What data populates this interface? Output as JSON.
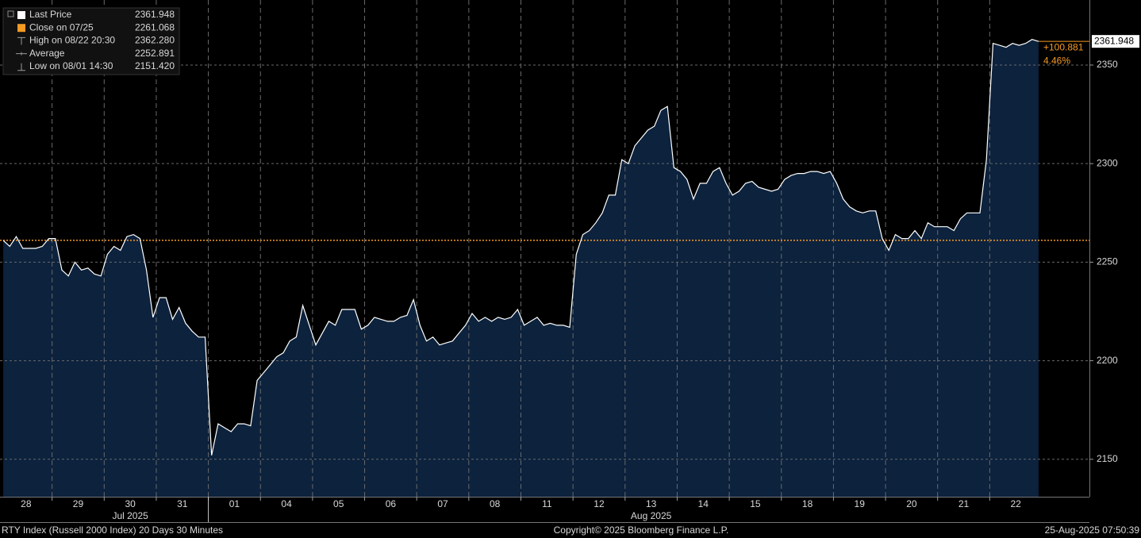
{
  "chart_data": {
    "type": "area",
    "legend": [
      {
        "label": "Last Price",
        "value": "2361.948"
      },
      {
        "label": "Close on 07/25",
        "value": "2261.068"
      },
      {
        "label": "High on 08/22 20:30",
        "value": "2362.280"
      },
      {
        "label": "Average",
        "value": "2252.891"
      },
      {
        "label": "Low on 08/01 14:30",
        "value": "2151.420"
      }
    ],
    "reference_line": 2261.068,
    "change_label": "+100.881",
    "change_pct_label": "4.46%",
    "categories": [
      null,
      null,
      null,
      null,
      "28",
      null,
      null,
      null,
      null,
      null,
      null,
      null,
      "29",
      null,
      null,
      null,
      null,
      null,
      null,
      null,
      "30",
      null,
      null,
      null,
      null,
      null,
      null,
      null,
      "31",
      null,
      null,
      null,
      null,
      null,
      null,
      null,
      "01",
      null,
      null,
      null,
      null,
      null,
      null,
      null,
      "04",
      null,
      null,
      null,
      null,
      null,
      null,
      null,
      "05",
      null,
      null,
      null,
      null,
      null,
      null,
      null,
      "06",
      null,
      null,
      null,
      null,
      null,
      null,
      null,
      "07",
      null,
      null,
      null,
      null,
      null,
      null,
      null,
      "08",
      null,
      null,
      null,
      null,
      null,
      null,
      null,
      "11",
      null,
      null,
      null,
      null,
      null,
      null,
      null,
      "12",
      null,
      null,
      null,
      null,
      null,
      null,
      null,
      "13",
      null,
      null,
      null,
      null,
      null,
      null,
      null,
      "14",
      null,
      null,
      null,
      null,
      null,
      null,
      null,
      "15",
      null,
      null,
      null,
      null,
      null,
      null,
      null,
      "18",
      null,
      null,
      null,
      null,
      null,
      null,
      null,
      "19",
      null,
      null,
      null,
      null,
      null,
      null,
      null,
      "20",
      null,
      null,
      null,
      null,
      null,
      null,
      null,
      "21",
      null,
      null,
      null,
      null,
      null,
      null,
      null,
      "22",
      null,
      null,
      null
    ],
    "month_labels": [
      "Jul 2025",
      "Aug 2025"
    ],
    "series": [
      {
        "name": "Last Price",
        "color": "#ffffff",
        "fill": "#0c223d",
        "values": [
          2261,
          2258,
          2263,
          2257,
          2257,
          2257,
          2258,
          2262,
          2262,
          2246,
          2243,
          2250,
          2246,
          2247,
          2244,
          2243,
          2254,
          2258,
          2256,
          2263,
          2264,
          2262,
          2246,
          2222,
          2232,
          2232,
          2221,
          2227,
          2219,
          2215,
          2212,
          2212,
          2152,
          2168,
          2166,
          2164,
          2168,
          2168,
          2167,
          2190,
          2194,
          2198,
          2202,
          2204,
          2210,
          2212,
          2228,
          2218,
          2208,
          2214,
          2220,
          2218,
          2226,
          2226,
          2226,
          2216,
          2218,
          2222,
          2221,
          2220,
          2220,
          2222,
          2223,
          2231,
          2218,
          2210,
          2212,
          2208,
          2209,
          2210,
          2214,
          2218,
          2224,
          2220,
          2222,
          2220,
          2222,
          2221,
          2222,
          2226,
          2218,
          2220,
          2222,
          2218,
          2219,
          2218,
          2218,
          2217,
          2254,
          2264,
          2266,
          2270,
          2275,
          2284,
          2284,
          2302,
          2300,
          2309,
          2313,
          2317,
          2319,
          2327,
          2329,
          2298,
          2296,
          2292,
          2282,
          2290,
          2290,
          2296,
          2298,
          2290,
          2284,
          2286,
          2290,
          2291,
          2288,
          2287,
          2286,
          2287,
          2292,
          2294,
          2295,
          2295,
          2296,
          2296,
          2295,
          2296,
          2290,
          2282,
          2278,
          2276,
          2275,
          2276,
          2276,
          2262,
          2256,
          2264,
          2262,
          2262,
          2266,
          2262,
          2270,
          2268,
          2268,
          2268,
          2266,
          2272,
          2275,
          2275,
          2275,
          2302,
          2361,
          2360,
          2359,
          2361,
          2360,
          2361,
          2363,
          2362
        ]
      }
    ],
    "ylim": [
      2131,
      2383
    ],
    "yticks": [
      2150,
      2200,
      2250,
      2300,
      2350
    ],
    "grid": true,
    "footer_left": "RTY Index (Russell 2000 Index) 20 Days 30 Minutes",
    "footer_center": "Copyright© 2025 Bloomberg Finance L.P.",
    "footer_right": "25-Aug-2025 07:50:39"
  }
}
